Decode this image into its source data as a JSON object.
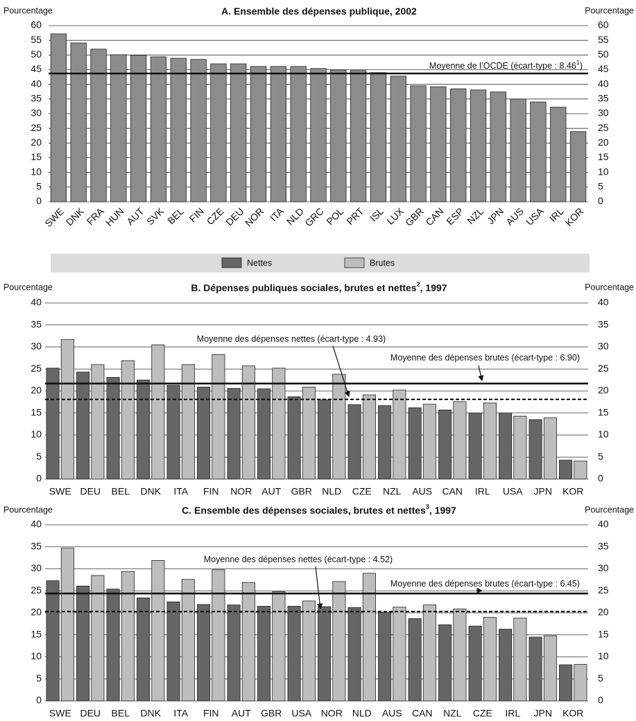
{
  "chart_data": [
    {
      "type": "bar",
      "y_label": "Pourcentage",
      "title": "A.  Ensemble des dépenses publique, 2002",
      "categories": [
        "SWE",
        "DNK",
        "FRA",
        "HUN",
        "AUT",
        "SVK",
        "BEL",
        "FIN",
        "CZE",
        "DEU",
        "NOR",
        "ITA",
        "NLD",
        "GRC",
        "POL",
        "PRT",
        "ISL",
        "LUX",
        "GBR",
        "CAN",
        "ESP",
        "NZL",
        "JPN",
        "AUS",
        "USA",
        "IRL",
        "KOR"
      ],
      "values": [
        57.2,
        54.1,
        52.0,
        50.1,
        49.9,
        49.4,
        48.9,
        48.5,
        47.0,
        47.0,
        46.1,
        46.1,
        46.1,
        45.4,
        44.9,
        44.7,
        44.0,
        42.8,
        39.5,
        39.2,
        38.5,
        38.1,
        37.4,
        35.0,
        34.0,
        32.2,
        23.9
      ],
      "color": "#8c8c8c",
      "ylim": [
        0,
        60
      ],
      "yticks": [
        0,
        5,
        10,
        15,
        20,
        25,
        30,
        35,
        40,
        45,
        50,
        55,
        60
      ],
      "grid": true,
      "mean_lines": [
        {
          "value": 43.7,
          "style": "solid",
          "label": "Moyenne de l’OCDE (écart-type : 8.46",
          "label_note": "1",
          "label_tail": ")"
        }
      ]
    },
    {
      "type": "bar",
      "y_label": "Pourcentage",
      "title": "B.  Dépenses publiques sociales, brutes et nettes",
      "title_note": "2",
      "title_tail": ", 1997",
      "categories": [
        "SWE",
        "DEU",
        "BEL",
        "DNK",
        "ITA",
        "FIN",
        "NOR",
        "AUT",
        "GBR",
        "NLD",
        "CZE",
        "NZL",
        "AUS",
        "CAN",
        "IRL",
        "USA",
        "JPN",
        "KOR"
      ],
      "series": [
        {
          "name": "Nettes",
          "color": "#666666",
          "values": [
            25.2,
            24.3,
            23.1,
            22.5,
            21.3,
            20.9,
            20.6,
            20.5,
            18.7,
            18.0,
            16.9,
            16.7,
            16.2,
            15.7,
            15.0,
            15.0,
            13.5,
            4.3
          ]
        },
        {
          "name": "Brutes",
          "color": "#bdbdbd",
          "values": [
            31.7,
            26.0,
            26.9,
            30.5,
            26.0,
            28.3,
            25.7,
            25.2,
            20.9,
            23.8,
            19.1,
            20.2,
            17.0,
            17.6,
            17.3,
            14.3,
            13.9,
            4.1
          ]
        }
      ],
      "ylim": [
        0,
        40
      ],
      "yticks": [
        0,
        5,
        10,
        15,
        20,
        25,
        30,
        35,
        40
      ],
      "grid": true,
      "mean_lines": [
        {
          "value": 18.1,
          "style": "dashed",
          "label": "Moyenne des dépenses nettes (écart-type : 4.93)"
        },
        {
          "value": 21.7,
          "style": "solid",
          "label": "Moyenne des dépenses brutes (écart-type : 6.90)"
        }
      ]
    },
    {
      "type": "bar",
      "y_label": "Pourcentage",
      "title": "C.  Ensemble des dépenses sociales, brutes et nettes",
      "title_note": "3",
      "title_tail": ", 1997",
      "categories": [
        "SWE",
        "DEU",
        "BEL",
        "DNK",
        "ITA",
        "FIN",
        "AUT",
        "GBR",
        "USA",
        "NOR",
        "NLD",
        "AUS",
        "CAN",
        "NZL",
        "CZE",
        "IRL",
        "JPN",
        "KOR"
      ],
      "series": [
        {
          "color": "#666666",
          "values": [
            27.3,
            26.1,
            25.4,
            23.4,
            22.5,
            21.9,
            21.8,
            21.5,
            21.5,
            21.4,
            21.2,
            20.1,
            18.7,
            17.3,
            17.0,
            16.3,
            14.5,
            8.2
          ]
        },
        {
          "color": "#bdbdbd",
          "values": [
            34.7,
            28.5,
            29.4,
            31.9,
            27.6,
            29.8,
            26.9,
            24.8,
            22.7,
            27.1,
            29.0,
            21.3,
            21.8,
            20.9,
            19.0,
            18.8,
            14.8,
            8.3
          ]
        }
      ],
      "ylim": [
        0,
        40
      ],
      "yticks": [
        0,
        5,
        10,
        15,
        20,
        25,
        30,
        35,
        40
      ],
      "grid": true,
      "mean_lines": [
        {
          "value": 20.3,
          "style": "dashed",
          "label": "Moyenne des dépenses nettes (écart-type : 4.52)"
        },
        {
          "value": 24.4,
          "style": "solid",
          "label": "Moyenne des dépenses brutes (écart-type : 6.45)"
        }
      ]
    }
  ]
}
